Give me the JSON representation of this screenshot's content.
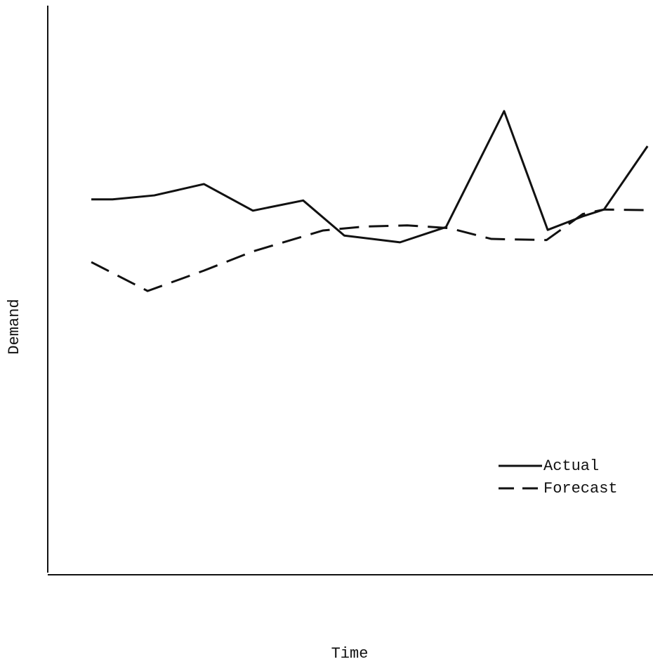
{
  "chart_data": {
    "type": "line",
    "x_label": "Time",
    "y_label": "Demand",
    "xlim": [
      0,
      100
    ],
    "ylim": [
      0,
      100
    ],
    "legend": "lower right",
    "series": [
      {
        "name": "Actual",
        "color": "#111111",
        "style": "solid",
        "x": [
          7.2,
          10.7,
          17.6,
          25.8,
          33.9,
          42.2,
          49.0,
          58.2,
          65.8,
          75.4,
          82.6,
          88.4,
          91.9,
          99.1
        ],
        "values": [
          66.0,
          66.0,
          66.7,
          68.7,
          64.0,
          65.8,
          59.6,
          58.4,
          61.1,
          81.6,
          60.6,
          63.0,
          64.2,
          75.4
        ]
      },
      {
        "name": "Forecast",
        "color": "#111111",
        "style": "dashed",
        "x": [
          7.2,
          16.5,
          25.8,
          33.9,
          45.5,
          52.4,
          59.4,
          66.4,
          73.3,
          82.4,
          88.4,
          91.9,
          98.6
        ],
        "values": [
          54.9,
          49.8,
          53.4,
          56.8,
          60.5,
          61.2,
          61.4,
          60.9,
          59.0,
          58.8,
          63.4,
          64.2,
          64.1
        ]
      }
    ]
  }
}
